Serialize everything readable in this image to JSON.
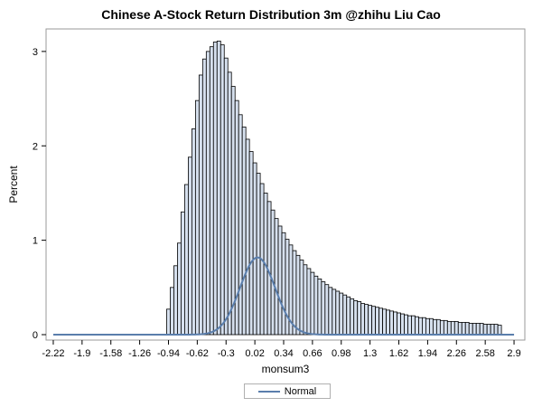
{
  "chart_data": {
    "type": "bar",
    "title": "Chinese A-Stock Return Distribution 3m @zhihu Liu Cao",
    "xlabel": "monsum3",
    "ylabel": "Percent",
    "xlim": [
      -2.3,
      3.02
    ],
    "ylim": [
      0,
      3.2
    ],
    "x_ticks": [
      "-2.22",
      "-1.9",
      "-1.58",
      "-1.26",
      "-0.94",
      "-0.62",
      "-0.3",
      "0.02",
      "0.34",
      "0.66",
      "0.98",
      "1.3",
      "1.62",
      "1.94",
      "2.26",
      "2.58",
      "2.9"
    ],
    "y_ticks": [
      "0",
      "1",
      "2",
      "3"
    ],
    "grid": false,
    "bin_width": 0.04,
    "bin_start": -0.96,
    "values": [
      0.27,
      0.5,
      0.73,
      0.97,
      1.3,
      1.59,
      1.88,
      2.18,
      2.48,
      2.75,
      2.92,
      3.0,
      3.05,
      3.1,
      3.11,
      3.07,
      2.93,
      2.78,
      2.63,
      2.48,
      2.33,
      2.2,
      2.07,
      1.94,
      1.82,
      1.71,
      1.6,
      1.5,
      1.41,
      1.32,
      1.23,
      1.15,
      1.08,
      1.01,
      0.95,
      0.89,
      0.84,
      0.79,
      0.74,
      0.7,
      0.66,
      0.62,
      0.59,
      0.56,
      0.53,
      0.5,
      0.48,
      0.46,
      0.44,
      0.42,
      0.4,
      0.38,
      0.36,
      0.35,
      0.33,
      0.32,
      0.31,
      0.3,
      0.29,
      0.28,
      0.27,
      0.26,
      0.25,
      0.24,
      0.23,
      0.22,
      0.21,
      0.2,
      0.2,
      0.19,
      0.18,
      0.18,
      0.17,
      0.17,
      0.16,
      0.16,
      0.15,
      0.15,
      0.14,
      0.14,
      0.14,
      0.13,
      0.13,
      0.13,
      0.12,
      0.12,
      0.12,
      0.12,
      0.11,
      0.11,
      0.11,
      0.11,
      0.1
    ],
    "series": [
      {
        "name": "Normal",
        "mean": 0.05,
        "sd": 0.195,
        "scale": 0.04,
        "color": "#5a7eac"
      }
    ],
    "legend": {
      "placement": "bottom-center",
      "label": "Normal"
    },
    "bar_fill": "#d6e0ee",
    "bar_stroke": "#000000"
  }
}
